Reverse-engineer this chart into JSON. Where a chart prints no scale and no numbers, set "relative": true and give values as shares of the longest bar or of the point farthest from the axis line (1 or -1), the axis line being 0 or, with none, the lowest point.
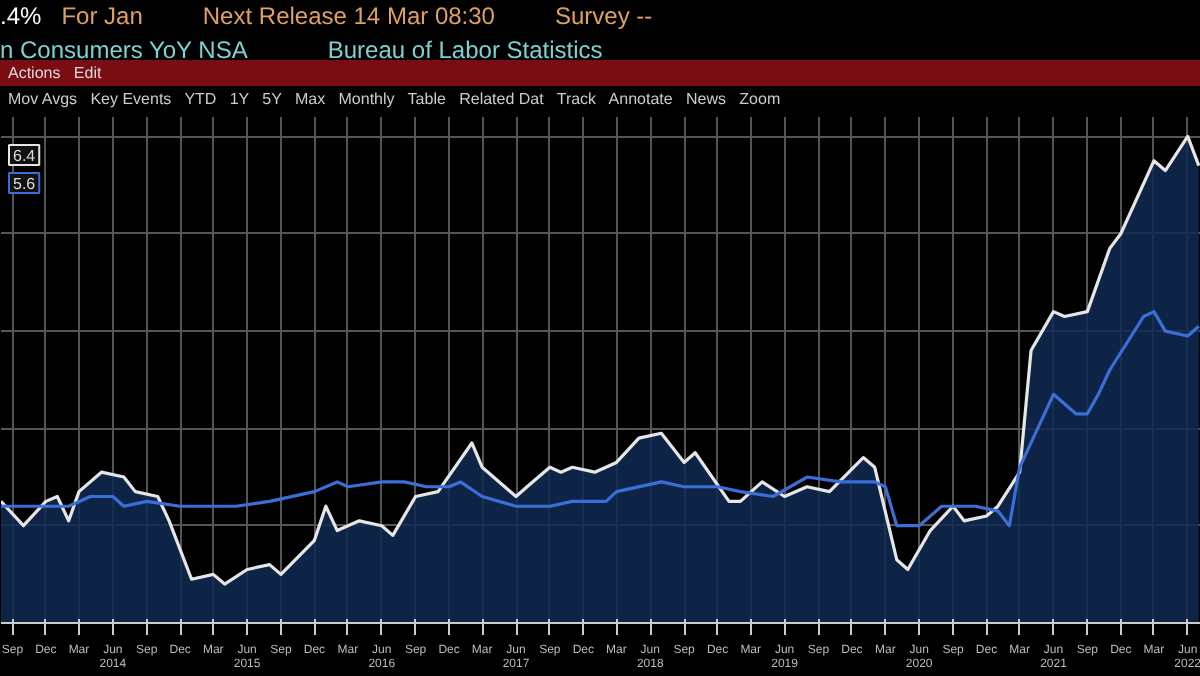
{
  "chart_data": {
    "type": "area",
    "title": "n Consumers YoY NSA",
    "relative": true,
    "grid": true,
    "annotations": [
      ".4%",
      "For Jan",
      "Next Release 14 Mar 08:30",
      "Survey --",
      "Bureau of Labor Statistics",
      "6.4",
      "5.6",
      "Actions",
      "Edit",
      "Mov Avgs",
      "Key Events",
      "YTD",
      "1Y",
      "5Y",
      "Max",
      "Monthly",
      "Table",
      "Related Dat",
      "Track",
      "Annotate",
      "News",
      "Zoom"
    ],
    "xlim": [
      "2013-08-01",
      "2022-07-07"
    ],
    "xticks": [
      {
        "value": "2013-09",
        "label": "Sep"
      },
      {
        "value": "2013-12",
        "label": "Dec"
      },
      {
        "value": "2014-03",
        "label": "Mar"
      },
      {
        "value": "2014-06",
        "label": "Jun\n2014"
      },
      {
        "value": "2014-09",
        "label": "Sep"
      },
      {
        "value": "2014-12",
        "label": "Dec"
      },
      {
        "value": "2015-03",
        "label": "Mar"
      },
      {
        "value": "2015-06",
        "label": "Jun\n2015"
      },
      {
        "value": "2015-09",
        "label": "Sep"
      },
      {
        "value": "2015-12",
        "label": "Dec"
      },
      {
        "value": "2016-03",
        "label": "Mar"
      },
      {
        "value": "2016-06",
        "label": "Jun\n2016"
      },
      {
        "value": "2016-09",
        "label": "Sep"
      },
      {
        "value": "2016-12",
        "label": "Dec"
      },
      {
        "value": "2017-03",
        "label": "Mar"
      },
      {
        "value": "2017-06",
        "label": "Jun\n2017"
      },
      {
        "value": "2017-09",
        "label": "Sep"
      },
      {
        "value": "2017-12",
        "label": "Dec"
      },
      {
        "value": "2018-03",
        "label": "Mar"
      },
      {
        "value": "2018-06",
        "label": "Jun\n2018"
      },
      {
        "value": "2018-09",
        "label": "Sep"
      },
      {
        "value": "2018-12",
        "label": "Dec"
      },
      {
        "value": "2019-03",
        "label": "Mar"
      },
      {
        "value": "2019-06",
        "label": "Jun\n2019"
      },
      {
        "value": "2019-09",
        "label": "Sep"
      },
      {
        "value": "2019-12",
        "label": "Dec"
      },
      {
        "value": "2020-03",
        "label": "Mar"
      },
      {
        "value": "2020-06",
        "label": "Jun\n2020"
      },
      {
        "value": "2020-09",
        "label": "Sep"
      },
      {
        "value": "2020-12",
        "label": "Dec"
      },
      {
        "value": "2021-03",
        "label": "Mar"
      },
      {
        "value": "2021-06",
        "label": "Jun\n2021"
      },
      {
        "value": "2021-09",
        "label": "Sep"
      },
      {
        "value": "2021-12",
        "label": "Dec"
      },
      {
        "value": "2022-03",
        "label": "Mar"
      },
      {
        "value": "2022-06",
        "label": "Jun\n2022"
      }
    ],
    "series": [
      {
        "color": "#e6e6e6",
        "x": [
          "2013-08",
          "2013-10",
          "2013-12",
          "2014-01",
          "2014-02",
          "2014-03",
          "2014-05",
          "2014-07",
          "2014-08",
          "2014-10",
          "2014-11",
          "2015-01",
          "2015-03",
          "2015-04",
          "2015-06",
          "2015-08",
          "2015-09",
          "2015-12",
          "2016-01",
          "2016-02",
          "2016-04",
          "2016-06",
          "2016-07",
          "2016-09",
          "2016-11",
          "2017-02",
          "2017-03",
          "2017-06",
          "2017-07",
          "2017-09",
          "2017-10",
          "2017-11",
          "2018-01",
          "2018-03",
          "2018-05",
          "2018-07",
          "2018-09",
          "2018-10",
          "2019-01",
          "2019-02",
          "2019-04",
          "2019-06",
          "2019-08",
          "2019-10",
          "2020-01",
          "2020-02",
          "2020-04",
          "2020-05",
          "2020-07",
          "2020-09",
          "2020-10",
          "2020-12",
          "2021-01",
          "2021-03",
          "2021-04",
          "2021-06",
          "2021-07",
          "2021-09",
          "2021-11",
          "2021-12",
          "2022-03",
          "2022-04",
          "2022-06",
          "2022-07"
        ],
        "values": [
          0.25,
          0.2,
          0.25,
          0.26,
          0.21,
          0.27,
          0.31,
          0.3,
          0.27,
          0.26,
          0.21,
          0.09,
          0.1,
          0.08,
          0.11,
          0.12,
          0.1,
          0.17,
          0.24,
          0.19,
          0.21,
          0.2,
          0.18,
          0.26,
          0.27,
          0.37,
          0.32,
          0.26,
          0.28,
          0.32,
          0.31,
          0.32,
          0.31,
          0.33,
          0.38,
          0.39,
          0.33,
          0.35,
          0.25,
          0.25,
          0.29,
          0.26,
          0.28,
          0.27,
          0.34,
          0.32,
          0.13,
          0.11,
          0.19,
          0.24,
          0.21,
          0.22,
          0.24,
          0.31,
          0.56,
          0.64,
          0.63,
          0.64,
          0.77,
          0.8,
          0.95,
          0.93,
          1,
          0.94
        ]
      },
      {
        "type": "line",
        "color": "#3a6fd8",
        "x": [
          "2013-08",
          "2013-10",
          "2013-12",
          "2014-02",
          "2014-04",
          "2014-06",
          "2014-07",
          "2014-09",
          "2014-12",
          "2015-03",
          "2015-05",
          "2015-08",
          "2015-12",
          "2016-02",
          "2016-03",
          "2016-06",
          "2016-08",
          "2016-10",
          "2016-12",
          "2017-01",
          "2017-03",
          "2017-06",
          "2017-09",
          "2017-11",
          "2018-02",
          "2018-03",
          "2018-07",
          "2018-09",
          "2018-12",
          "2019-02",
          "2019-05",
          "2019-08",
          "2019-11",
          "2020-02",
          "2020-03",
          "2020-04",
          "2020-06",
          "2020-08",
          "2020-11",
          "2021-01",
          "2021-02",
          "2021-03",
          "2021-06",
          "2021-08",
          "2021-09",
          "2021-10",
          "2021-11",
          "2022-02",
          "2022-03",
          "2022-04",
          "2022-06",
          "2022-07"
        ],
        "values": [
          0.24,
          0.24,
          0.24,
          0.24,
          0.26,
          0.26,
          0.24,
          0.25,
          0.24,
          0.24,
          0.24,
          0.25,
          0.27,
          0.29,
          0.28,
          0.29,
          0.29,
          0.28,
          0.28,
          0.29,
          0.26,
          0.24,
          0.24,
          0.25,
          0.25,
          0.27,
          0.29,
          0.28,
          0.28,
          0.27,
          0.26,
          0.3,
          0.29,
          0.29,
          0.28,
          0.2,
          0.2,
          0.24,
          0.24,
          0.23,
          0.2,
          0.32,
          0.47,
          0.43,
          0.43,
          0.47,
          0.52,
          0.63,
          0.64,
          0.6,
          0.59,
          0.61
        ]
      }
    ]
  }
}
